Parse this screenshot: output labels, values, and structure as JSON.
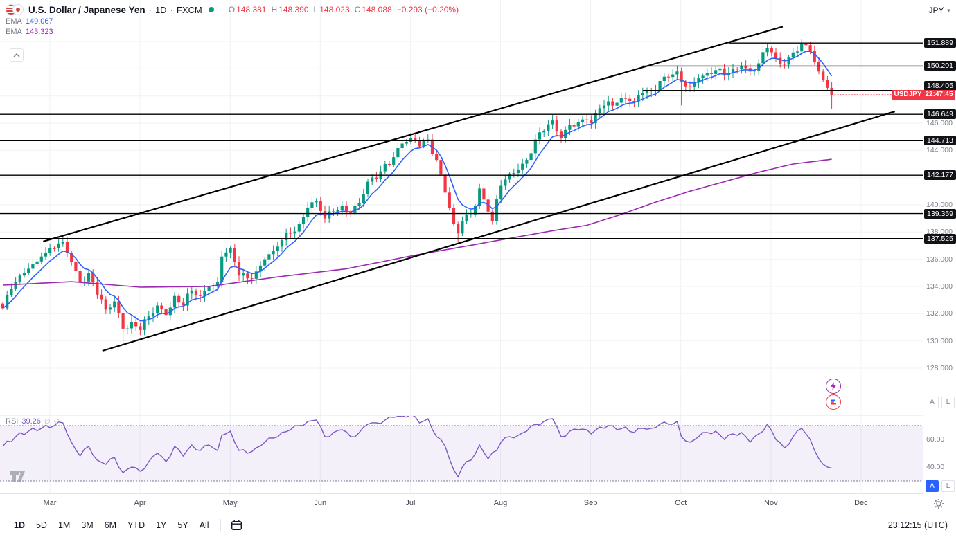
{
  "colors": {
    "up": "#089981",
    "down": "#f23645",
    "ema_fast": "#2962ff",
    "ema_slow": "#9c27b0",
    "rsi_line": "#7e57c2",
    "badge_bg": "#101216",
    "countdown_bg": "#f23645",
    "accent_blue": "#2962ff",
    "status_open": "#089981",
    "trendline": "#000000",
    "grid": "#f0f2f6",
    "pane_border": "#e0e3eb"
  },
  "header": {
    "symbol_title": "U.S. Dollar / Japanese Yen",
    "dot": "·",
    "interval": "1D",
    "exchange": "FXCM",
    "ohlc": {
      "o_label": "O",
      "o": "148.381",
      "h_label": "H",
      "h": "148.390",
      "l_label": "L",
      "l": "148.023",
      "c_label": "C",
      "c": "148.088",
      "change": "−0.293 (−0.20%)"
    },
    "currency_button": "JPY"
  },
  "indicators": {
    "ema_fast": {
      "label": "EMA",
      "value": "149.067"
    },
    "ema_slow": {
      "label": "EMA",
      "value": "143.323"
    }
  },
  "price_axis": {
    "badges": [
      "151.889",
      "150.201",
      "148.405",
      "146.649",
      "144.713",
      "142.177",
      "139.359",
      "137.525"
    ],
    "gridline_labels": [
      "146.000",
      "144.000",
      "140.000",
      "138.000",
      "136.000",
      "134.000",
      "132.000",
      "130.000",
      "128.000"
    ],
    "countdown_badge": {
      "symbol": "USDJPY",
      "countdown": "22:47:45",
      "price": 148.088
    }
  },
  "rsi": {
    "label": "RSI",
    "value": "39.26",
    "tick_labels": [
      "60.00",
      "40.00"
    ]
  },
  "time_axis": {
    "months": [
      "Mar",
      "Apr",
      "May",
      "Jun",
      "Jul",
      "Aug",
      "Sep",
      "Oct",
      "Nov",
      "Dec"
    ]
  },
  "toolbar": {
    "ranges": [
      "1D",
      "5D",
      "1M",
      "3M",
      "6M",
      "YTD",
      "1Y",
      "5Y",
      "All"
    ],
    "active": "1D",
    "clock": "23:12:15 (UTC)"
  },
  "scale_buttons": {
    "auto": "A",
    "log": "L"
  },
  "chart_data": {
    "type": "candlestick",
    "title": "U.S. Dollar / Japanese Yen, 1D, FXCM",
    "last_price": 148.088,
    "x_axis_months": [
      "Mar",
      "Apr",
      "May",
      "Jun",
      "Jul",
      "Aug",
      "Sep",
      "Oct",
      "Nov",
      "Dec"
    ],
    "y_axis": {
      "visible_range": [
        126.8,
        155.1
      ],
      "tick_step": 2.0,
      "ticks": [
        152,
        150,
        148,
        146,
        144,
        142,
        140,
        138,
        136,
        134,
        132,
        130,
        128
      ]
    },
    "num_candles": 194,
    "close_anchors": [
      [
        0,
        132.4
      ],
      [
        2,
        133.8
      ],
      [
        4,
        134.8
      ],
      [
        6,
        135.3
      ],
      [
        9,
        136.2
      ],
      [
        12,
        136.8
      ],
      [
        14,
        137.3
      ],
      [
        16,
        135.8
      ],
      [
        18,
        134.3
      ],
      [
        20,
        135.0
      ],
      [
        22,
        133.4
      ],
      [
        24,
        132.3
      ],
      [
        26,
        132.9
      ],
      [
        28,
        130.9
      ],
      [
        30,
        131.4
      ],
      [
        32,
        130.8
      ],
      [
        34,
        131.8
      ],
      [
        36,
        132.6
      ],
      [
        38,
        131.9
      ],
      [
        40,
        133.3
      ],
      [
        42,
        132.6
      ],
      [
        44,
        133.7
      ],
      [
        46,
        133.3
      ],
      [
        48,
        134.0
      ],
      [
        50,
        134.3
      ],
      [
        51,
        136.2
      ],
      [
        53,
        136.8
      ],
      [
        55,
        134.8
      ],
      [
        57,
        134.6
      ],
      [
        59,
        135.1
      ],
      [
        61,
        136.0
      ],
      [
        63,
        136.6
      ],
      [
        65,
        137.4
      ],
      [
        67,
        137.9
      ],
      [
        69,
        138.6
      ],
      [
        71,
        139.8
      ],
      [
        73,
        140.3
      ],
      [
        75,
        139.0
      ],
      [
        77,
        139.5
      ],
      [
        79,
        139.9
      ],
      [
        81,
        139.4
      ],
      [
        83,
        140.1
      ],
      [
        85,
        141.7
      ],
      [
        87,
        141.9
      ],
      [
        89,
        143.0
      ],
      [
        91,
        143.5
      ],
      [
        93,
        144.5
      ],
      [
        95,
        144.9
      ],
      [
        97,
        144.3
      ],
      [
        99,
        144.8
      ],
      [
        101,
        143.3
      ],
      [
        103,
        140.9
      ],
      [
        105,
        138.6
      ],
      [
        106,
        137.9
      ],
      [
        107,
        138.8
      ],
      [
        109,
        139.3
      ],
      [
        111,
        141.2
      ],
      [
        113,
        139.5
      ],
      [
        114,
        138.8
      ],
      [
        116,
        141.4
      ],
      [
        118,
        142.3
      ],
      [
        120,
        142.6
      ],
      [
        122,
        143.3
      ],
      [
        124,
        144.8
      ],
      [
        126,
        145.4
      ],
      [
        128,
        146.2
      ],
      [
        130,
        144.9
      ],
      [
        132,
        145.9
      ],
      [
        134,
        146.1
      ],
      [
        136,
        146.2
      ],
      [
        137,
        146.0
      ],
      [
        139,
        147.1
      ],
      [
        141,
        147.6
      ],
      [
        143,
        147.5
      ],
      [
        145,
        147.8
      ],
      [
        147,
        147.6
      ],
      [
        149,
        148.2
      ],
      [
        151,
        148.4
      ],
      [
        153,
        149.1
      ],
      [
        155,
        149.4
      ],
      [
        157,
        149.8
      ],
      [
        158,
        149.0
      ],
      [
        160,
        148.7
      ],
      [
        162,
        149.3
      ],
      [
        164,
        149.7
      ],
      [
        166,
        149.9
      ],
      [
        168,
        149.5
      ],
      [
        170,
        150.0
      ],
      [
        172,
        150.2
      ],
      [
        174,
        149.8
      ],
      [
        176,
        150.4
      ],
      [
        178,
        151.5
      ],
      [
        180,
        150.8
      ],
      [
        182,
        150.3
      ],
      [
        184,
        151.2
      ],
      [
        186,
        151.8
      ],
      [
        188,
        151.3
      ],
      [
        189,
        150.5
      ],
      [
        190,
        149.8
      ],
      [
        191,
        149.2
      ],
      [
        192,
        148.6
      ],
      [
        193,
        148.088
      ]
    ],
    "wick_overrides": {
      "14": {
        "high": 137.75
      },
      "28": {
        "low": 129.8
      },
      "106": {
        "low": 137.3
      },
      "158": {
        "low": 147.3
      },
      "186": {
        "high": 152.0
      },
      "193": {
        "low": 147.05
      }
    },
    "ema_fast_period": 7,
    "ema_slow_anchors": [
      [
        0,
        134.1
      ],
      [
        16,
        134.35
      ],
      [
        32,
        133.95
      ],
      [
        48,
        134.0
      ],
      [
        64,
        134.7
      ],
      [
        80,
        135.3
      ],
      [
        96,
        136.3
      ],
      [
        112,
        137.2
      ],
      [
        128,
        138.1
      ],
      [
        136,
        138.5
      ],
      [
        144,
        139.3
      ],
      [
        152,
        140.2
      ],
      [
        160,
        141.0
      ],
      [
        168,
        141.7
      ],
      [
        176,
        142.4
      ],
      [
        184,
        143.0
      ],
      [
        193,
        143.35
      ]
    ],
    "trendlines": [
      {
        "i1": 9.4,
        "p1": 137.31,
        "i2": 181.6,
        "p2": 153.1
      },
      {
        "i1": 23.2,
        "p1": 129.27,
        "i2": 207.7,
        "p2": 146.86
      }
    ],
    "horizontal_lines": [
      {
        "price": 151.889,
        "from_i": 169
      },
      {
        "price": 150.201,
        "from_i": 149
      },
      {
        "price": 148.405,
        "from_i": 149
      },
      {
        "price": 146.649,
        "from_i": 0
      },
      {
        "price": 144.713,
        "from_i": 0
      },
      {
        "price": 142.177,
        "from_i": 0
      },
      {
        "price": 139.359,
        "from_i": 0
      },
      {
        "price": 137.525,
        "from_i": 0
      }
    ],
    "rsi": {
      "last_value": 39.26,
      "band": [
        70,
        30
      ],
      "anchors": [
        [
          0,
          55
        ],
        [
          3,
          62
        ],
        [
          6,
          66
        ],
        [
          9,
          68
        ],
        [
          12,
          70
        ],
        [
          14,
          72
        ],
        [
          16,
          58
        ],
        [
          18,
          48
        ],
        [
          20,
          55
        ],
        [
          22,
          45
        ],
        [
          24,
          42
        ],
        [
          26,
          47
        ],
        [
          28,
          36
        ],
        [
          30,
          40
        ],
        [
          32,
          37
        ],
        [
          34,
          44
        ],
        [
          36,
          50
        ],
        [
          38,
          44
        ],
        [
          40,
          55
        ],
        [
          42,
          48
        ],
        [
          44,
          56
        ],
        [
          46,
          52
        ],
        [
          48,
          56
        ],
        [
          50,
          52
        ],
        [
          51,
          63
        ],
        [
          53,
          66
        ],
        [
          55,
          52
        ],
        [
          57,
          50
        ],
        [
          59,
          54
        ],
        [
          61,
          58
        ],
        [
          63,
          61
        ],
        [
          65,
          65
        ],
        [
          67,
          67
        ],
        [
          69,
          70
        ],
        [
          71,
          73
        ],
        [
          73,
          74
        ],
        [
          75,
          62
        ],
        [
          77,
          65
        ],
        [
          79,
          67
        ],
        [
          81,
          62
        ],
        [
          83,
          65
        ],
        [
          85,
          71
        ],
        [
          87,
          72
        ],
        [
          89,
          74
        ],
        [
          91,
          76
        ],
        [
          93,
          77
        ],
        [
          95,
          78
        ],
        [
          97,
          72
        ],
        [
          99,
          75
        ],
        [
          101,
          62
        ],
        [
          103,
          55
        ],
        [
          105,
          38
        ],
        [
          106,
          33
        ],
        [
          107,
          40
        ],
        [
          109,
          45
        ],
        [
          111,
          56
        ],
        [
          113,
          46
        ],
        [
          115,
          52
        ],
        [
          116,
          58
        ],
        [
          118,
          62
        ],
        [
          120,
          63
        ],
        [
          122,
          66
        ],
        [
          124,
          71
        ],
        [
          126,
          73
        ],
        [
          128,
          75
        ],
        [
          130,
          62
        ],
        [
          132,
          66
        ],
        [
          134,
          67
        ],
        [
          136,
          67
        ],
        [
          137,
          64
        ],
        [
          139,
          69
        ],
        [
          141,
          70
        ],
        [
          143,
          67
        ],
        [
          145,
          69
        ],
        [
          147,
          65
        ],
        [
          149,
          68
        ],
        [
          151,
          68
        ],
        [
          153,
          71
        ],
        [
          155,
          71
        ],
        [
          157,
          73
        ],
        [
          158,
          62
        ],
        [
          160,
          58
        ],
        [
          162,
          62
        ],
        [
          164,
          65
        ],
        [
          166,
          66
        ],
        [
          168,
          60
        ],
        [
          170,
          64
        ],
        [
          172,
          65
        ],
        [
          174,
          58
        ],
        [
          176,
          64
        ],
        [
          178,
          71
        ],
        [
          180,
          60
        ],
        [
          182,
          54
        ],
        [
          184,
          62
        ],
        [
          186,
          68
        ],
        [
          188,
          60
        ],
        [
          189,
          52
        ],
        [
          190,
          46
        ],
        [
          191,
          42
        ],
        [
          192,
          40
        ],
        [
          193,
          39.26
        ]
      ]
    }
  }
}
